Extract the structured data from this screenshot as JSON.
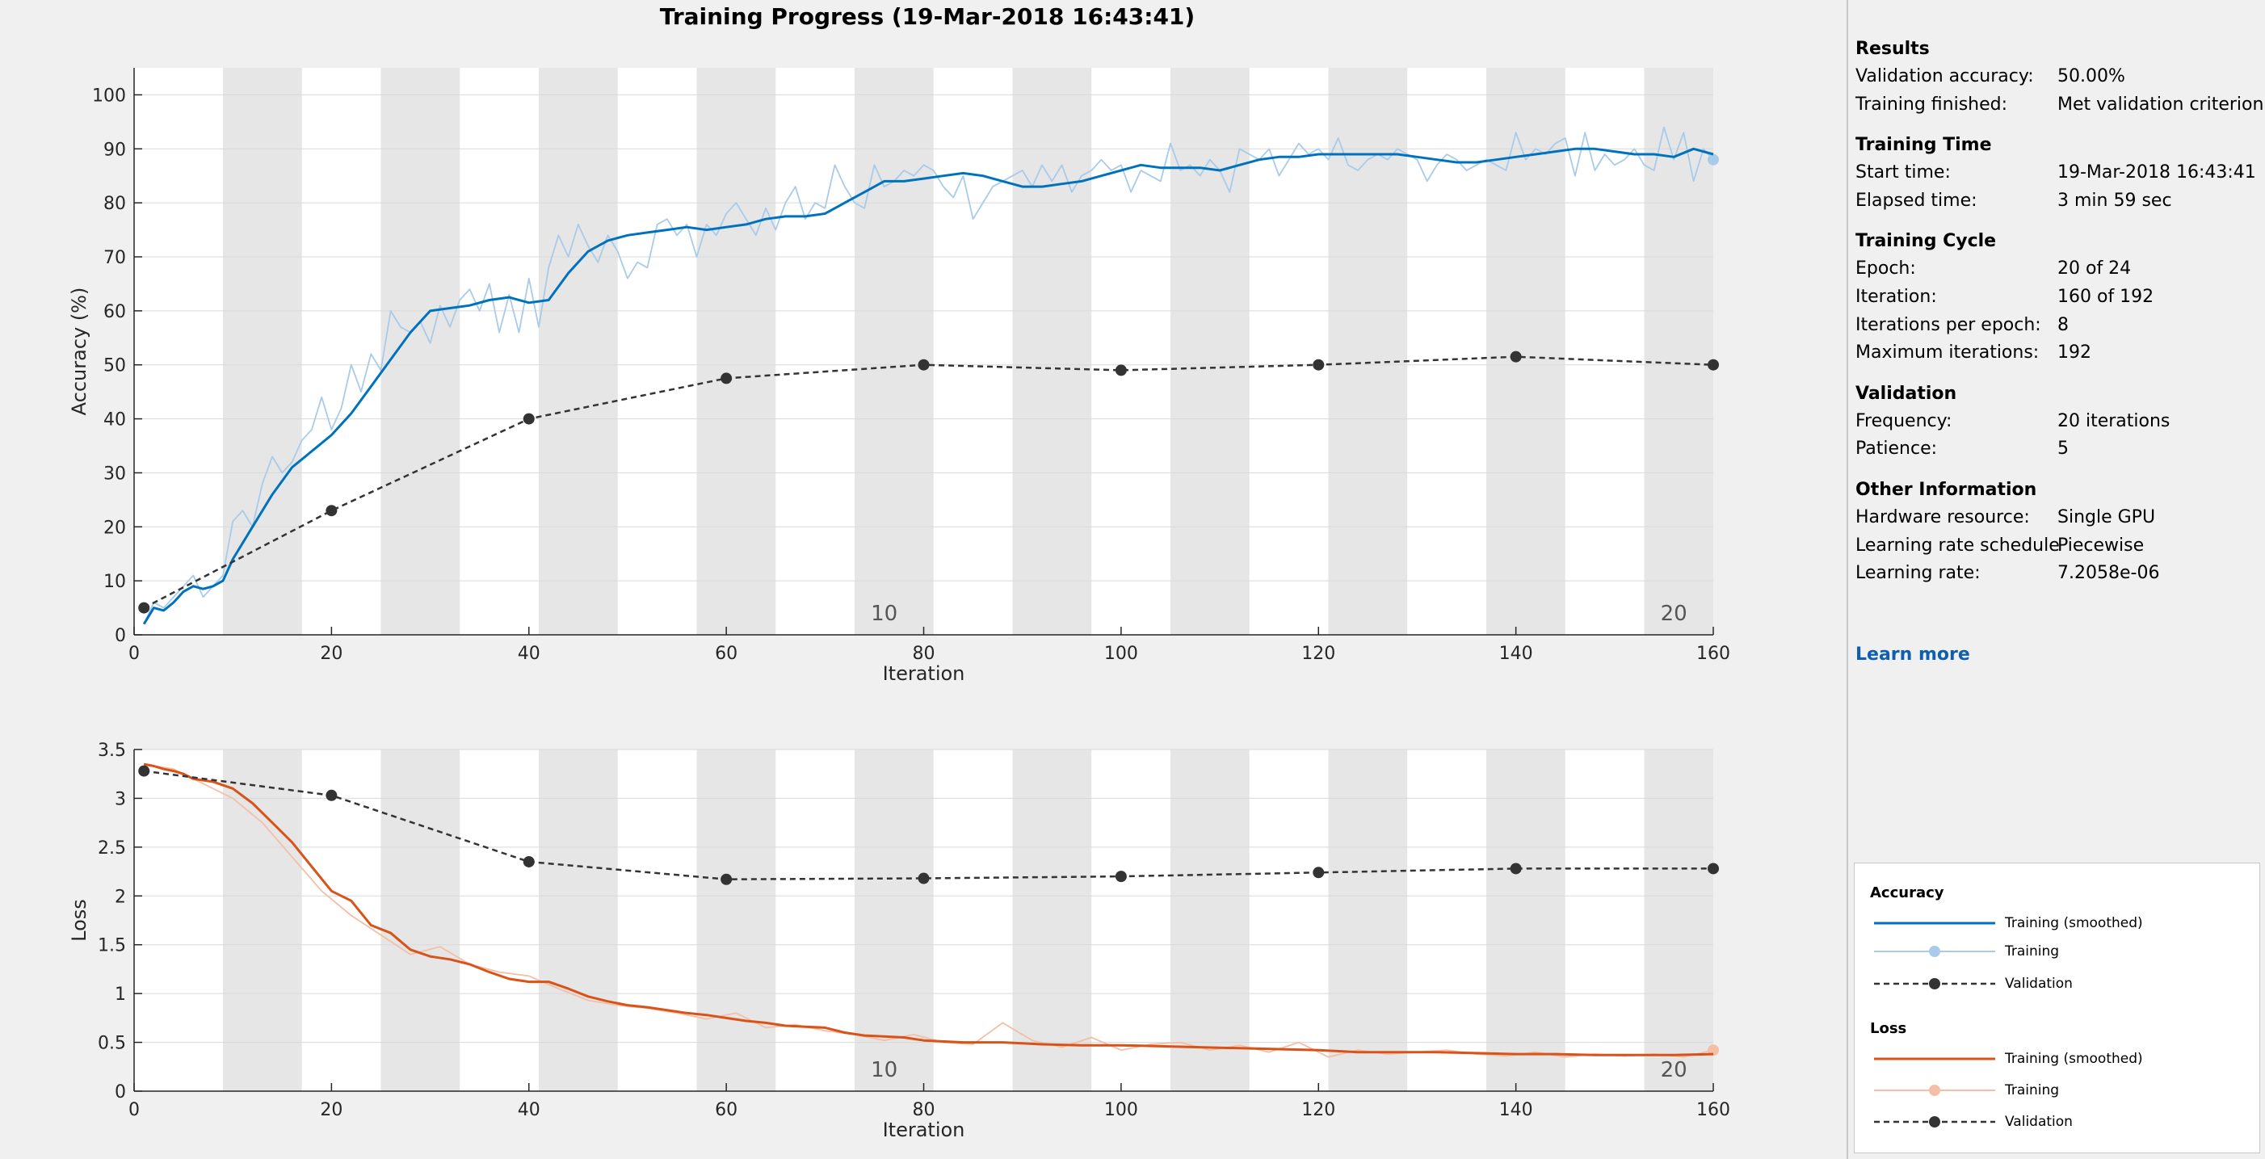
{
  "chart_title": "Training Progress (19-Mar-2018 16:43:41)",
  "chart_data": [
    {
      "type": "line",
      "ylabel": "Accuracy (%)",
      "xlabel": "Iteration",
      "xlim": [
        0,
        160
      ],
      "ylim": [
        0,
        105
      ],
      "x_ticks": [
        "0",
        "20",
        "40",
        "60",
        "80",
        "100",
        "120",
        "140",
        "160"
      ],
      "y_ticks": [
        "0",
        "10",
        "20",
        "30",
        "40",
        "50",
        "60",
        "70",
        "80",
        "90",
        "100"
      ],
      "epoch_labels": [
        "10",
        "20"
      ],
      "grid": true,
      "series": [
        {
          "name": "Training (smoothed)",
          "color": "#0072bd",
          "style": "solid",
          "x": [
            1,
            2,
            3,
            4,
            5,
            6,
            7,
            8,
            9,
            10,
            12,
            14,
            16,
            18,
            20,
            22,
            24,
            26,
            28,
            30,
            32,
            34,
            36,
            38,
            40,
            42,
            44,
            46,
            48,
            50,
            52,
            54,
            56,
            58,
            60,
            62,
            64,
            66,
            68,
            70,
            72,
            74,
            76,
            78,
            80,
            82,
            84,
            86,
            88,
            90,
            92,
            94,
            96,
            98,
            100,
            102,
            104,
            106,
            108,
            110,
            112,
            114,
            116,
            118,
            120,
            122,
            124,
            126,
            128,
            130,
            132,
            134,
            136,
            138,
            140,
            142,
            144,
            146,
            148,
            150,
            152,
            154,
            156,
            158,
            160
          ],
          "y": [
            2,
            5,
            4.5,
            6,
            8,
            9,
            8.5,
            9,
            10,
            14,
            20,
            26,
            31,
            34,
            37,
            41,
            46,
            51,
            56,
            60,
            60.5,
            61,
            62,
            62.5,
            61.5,
            62,
            67,
            71,
            73,
            74,
            74.5,
            75,
            75.5,
            75,
            75.5,
            76,
            77,
            77.5,
            77.5,
            78,
            80,
            82,
            84,
            84,
            84.5,
            85,
            85.5,
            85,
            84,
            83,
            83,
            83.5,
            84,
            85,
            86,
            87,
            86.5,
            86.5,
            86.5,
            86,
            87,
            88,
            88.5,
            88.5,
            89,
            89,
            89,
            89,
            89,
            88.5,
            88,
            87.5,
            87.5,
            88,
            88.5,
            89,
            89.5,
            90,
            90,
            89.5,
            89,
            89,
            88.5,
            90,
            89
          ]
        },
        {
          "name": "Training",
          "color": "#a8cbea",
          "style": "solid",
          "x": [
            1,
            2,
            3,
            4,
            5,
            6,
            7,
            8,
            9,
            10,
            11,
            12,
            13,
            14,
            15,
            16,
            17,
            18,
            19,
            20,
            21,
            22,
            23,
            24,
            25,
            26,
            27,
            28,
            29,
            30,
            31,
            32,
            33,
            34,
            35,
            36,
            37,
            38,
            39,
            40,
            41,
            42,
            43,
            44,
            45,
            46,
            47,
            48,
            49,
            50,
            51,
            52,
            53,
            54,
            55,
            56,
            57,
            58,
            59,
            60,
            61,
            62,
            63,
            64,
            65,
            66,
            67,
            68,
            69,
            70,
            71,
            72,
            73,
            74,
            75,
            76,
            77,
            78,
            79,
            80,
            81,
            82,
            83,
            84,
            85,
            86,
            87,
            88,
            89,
            90,
            91,
            92,
            93,
            94,
            95,
            96,
            97,
            98,
            99,
            100,
            101,
            102,
            103,
            104,
            105,
            106,
            107,
            108,
            109,
            110,
            111,
            112,
            113,
            114,
            115,
            116,
            117,
            118,
            119,
            120,
            121,
            122,
            123,
            124,
            125,
            126,
            127,
            128,
            129,
            130,
            131,
            132,
            133,
            134,
            135,
            136,
            137,
            138,
            139,
            140,
            141,
            142,
            143,
            144,
            145,
            146,
            147,
            148,
            149,
            150,
            151,
            152,
            153,
            154,
            155,
            156,
            157,
            158,
            159,
            160
          ],
          "y": [
            2,
            6,
            5,
            7,
            9,
            11,
            7,
            9,
            11,
            21,
            23,
            20,
            28,
            33,
            30,
            32,
            36,
            38,
            44,
            38,
            42,
            50,
            45,
            52,
            49,
            60,
            57,
            56,
            58,
            54,
            61,
            57,
            62,
            64,
            60,
            65,
            56,
            63,
            56,
            66,
            57,
            68,
            74,
            70,
            76,
            72,
            69,
            74,
            71,
            66,
            69,
            68,
            76,
            77,
            74,
            76,
            70,
            76,
            74,
            78,
            80,
            77,
            74,
            79,
            75,
            80,
            83,
            77,
            80,
            79,
            87,
            83,
            80,
            79,
            87,
            83,
            84,
            86,
            85,
            87,
            86,
            83,
            81,
            85,
            77,
            80,
            83,
            84,
            85,
            86,
            83,
            87,
            84,
            87,
            82,
            85,
            86,
            88,
            86,
            87,
            82,
            86,
            85,
            84,
            91,
            86,
            87,
            85,
            88,
            86,
            82,
            90,
            89,
            88,
            90,
            85,
            88,
            91,
            89,
            90,
            88,
            92,
            87,
            86,
            88,
            89,
            88,
            90,
            89,
            88,
            84,
            87,
            89,
            88,
            86,
            87,
            88,
            87,
            86,
            93,
            88,
            90,
            89,
            91,
            92,
            85,
            93,
            86,
            89,
            87,
            88,
            90,
            87,
            86,
            94,
            88,
            93,
            84,
            90,
            88
          ]
        },
        {
          "name": "Validation",
          "color": "#333333",
          "style": "dashed",
          "x": [
            1,
            20,
            40,
            60,
            80,
            100,
            120,
            140,
            160
          ],
          "y": [
            5,
            23,
            40,
            47.5,
            50,
            49,
            50,
            51.5,
            50
          ]
        }
      ]
    },
    {
      "type": "line",
      "ylabel": "Loss",
      "xlabel": "Iteration",
      "xlim": [
        0,
        160
      ],
      "ylim": [
        0,
        3.5
      ],
      "x_ticks": [
        "0",
        "20",
        "40",
        "60",
        "80",
        "100",
        "120",
        "140",
        "160"
      ],
      "y_ticks": [
        "0",
        "0.5",
        "1",
        "1.5",
        "2",
        "2.5",
        "3",
        "3.5"
      ],
      "epoch_labels": [
        "10",
        "20"
      ],
      "grid": true,
      "series": [
        {
          "name": "Training (smoothed)",
          "color": "#d95319",
          "style": "solid",
          "x": [
            1,
            2,
            3,
            4,
            5,
            6,
            8,
            10,
            12,
            14,
            16,
            18,
            20,
            22,
            24,
            26,
            28,
            30,
            32,
            34,
            36,
            38,
            40,
            42,
            44,
            46,
            48,
            50,
            52,
            54,
            56,
            58,
            60,
            62,
            64,
            66,
            68,
            70,
            72,
            74,
            76,
            78,
            80,
            84,
            88,
            92,
            96,
            100,
            104,
            108,
            112,
            116,
            120,
            124,
            128,
            132,
            136,
            140,
            144,
            148,
            152,
            156,
            160
          ],
          "y": [
            3.35,
            3.33,
            3.3,
            3.28,
            3.25,
            3.2,
            3.17,
            3.1,
            2.95,
            2.75,
            2.55,
            2.3,
            2.05,
            1.95,
            1.7,
            1.62,
            1.45,
            1.38,
            1.35,
            1.3,
            1.22,
            1.15,
            1.12,
            1.12,
            1.05,
            0.97,
            0.92,
            0.88,
            0.86,
            0.83,
            0.8,
            0.78,
            0.75,
            0.72,
            0.7,
            0.67,
            0.66,
            0.65,
            0.6,
            0.57,
            0.56,
            0.55,
            0.52,
            0.5,
            0.5,
            0.48,
            0.47,
            0.47,
            0.46,
            0.45,
            0.44,
            0.43,
            0.42,
            0.4,
            0.4,
            0.4,
            0.39,
            0.38,
            0.38,
            0.37,
            0.37,
            0.37,
            0.38
          ]
        },
        {
          "name": "Training",
          "color": "#f3bfa6",
          "style": "solid",
          "x": [
            1,
            4,
            7,
            10,
            13,
            16,
            19,
            22,
            25,
            28,
            31,
            34,
            37,
            40,
            43,
            46,
            49,
            52,
            55,
            58,
            61,
            64,
            67,
            70,
            73,
            76,
            79,
            82,
            85,
            88,
            91,
            94,
            97,
            100,
            103,
            106,
            109,
            112,
            115,
            118,
            121,
            124,
            127,
            130,
            133,
            136,
            139,
            142,
            145,
            148,
            151,
            154,
            157,
            160
          ],
          "y": [
            3.35,
            3.3,
            3.15,
            3.0,
            2.75,
            2.4,
            2.05,
            1.8,
            1.6,
            1.4,
            1.48,
            1.3,
            1.22,
            1.18,
            1.05,
            0.93,
            0.88,
            0.85,
            0.8,
            0.74,
            0.8,
            0.65,
            0.68,
            0.62,
            0.58,
            0.52,
            0.58,
            0.5,
            0.48,
            0.7,
            0.52,
            0.45,
            0.55,
            0.42,
            0.48,
            0.5,
            0.42,
            0.47,
            0.4,
            0.5,
            0.35,
            0.42,
            0.38,
            0.4,
            0.42,
            0.38,
            0.36,
            0.4,
            0.35,
            0.38,
            0.36,
            0.38,
            0.35,
            0.42
          ]
        },
        {
          "name": "Validation",
          "color": "#333333",
          "style": "dashed",
          "x": [
            1,
            20,
            40,
            60,
            80,
            100,
            120,
            140,
            160
          ],
          "y": [
            3.28,
            3.03,
            2.35,
            2.17,
            2.18,
            2.2,
            2.24,
            2.28,
            2.28
          ]
        }
      ]
    }
  ],
  "panel": {
    "sections": [
      {
        "title": "Results",
        "rows": [
          {
            "key": "Validation accuracy:",
            "value": "50.00%"
          },
          {
            "key": "Training finished:",
            "value": "Met validation criterion"
          }
        ]
      },
      {
        "title": "Training Time",
        "rows": [
          {
            "key": "Start time:",
            "value": "19-Mar-2018 16:43:41"
          },
          {
            "key": "Elapsed time:",
            "value": "3 min 59 sec"
          }
        ]
      },
      {
        "title": "Training Cycle",
        "rows": [
          {
            "key": "Epoch:",
            "value": "20 of 24"
          },
          {
            "key": "Iteration:",
            "value": "160 of 192"
          },
          {
            "key": "Iterations per epoch:",
            "value": "8"
          },
          {
            "key": "Maximum iterations:",
            "value": "192"
          }
        ]
      },
      {
        "title": "Validation",
        "rows": [
          {
            "key": "Frequency:",
            "value": "20 iterations"
          },
          {
            "key": "Patience:",
            "value": "5"
          }
        ]
      },
      {
        "title": "Other Information",
        "rows": [
          {
            "key": "Hardware resource:",
            "value": "Single GPU"
          },
          {
            "key": "Learning rate schedule",
            "value": "Piecewise"
          },
          {
            "key": "Learning rate:",
            "value": "7.2058e-06"
          }
        ]
      }
    ],
    "learn_more": "Learn more",
    "legend": {
      "accuracy_title": "Accuracy",
      "loss_title": "Loss",
      "accuracy_items": [
        "Training (smoothed)",
        "Training",
        "Validation"
      ],
      "loss_items": [
        "Training (smoothed)",
        "Training",
        "Validation"
      ],
      "colors": {
        "acc_smoothed": "#0072bd",
        "acc_training": "#a8cbea",
        "loss_smoothed": "#d95319",
        "loss_training": "#f3bfa6",
        "validation": "#333333"
      }
    }
  }
}
